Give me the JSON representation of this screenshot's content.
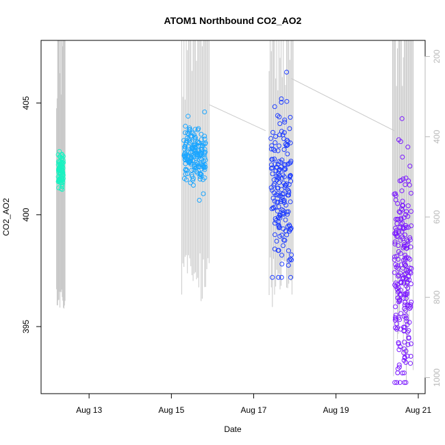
{
  "chart_data": {
    "type": "scatter",
    "title": "ATOM1 Northbound CO2_AO2",
    "xlabel": "Date",
    "ylabel": "CO2_AO2",
    "xlim": [
      "2024-08-11 20:00",
      "2024-08-21 04:00"
    ],
    "ylim": [
      392.0,
      407.8
    ],
    "y2lim": [
      160,
      1040
    ],
    "y2_reversed": true,
    "x_ticks": [
      "Aug 13",
      "Aug 15",
      "Aug 17",
      "Aug 19",
      "Aug 21"
    ],
    "x_tick_dates": [
      "2024-08-13",
      "2024-08-15",
      "2024-08-17",
      "2024-08-19",
      "2024-08-21"
    ],
    "y_ticks": [
      395,
      400,
      405
    ],
    "y2_ticks": [
      200,
      400,
      600,
      800,
      1000
    ],
    "grid": false,
    "legend": "none",
    "colors": {
      "background_series": "#c8c8c8",
      "axis": "#000000",
      "right_axis": "#b8b8b8"
    },
    "series": [
      {
        "time_start": "2024-08-12 06:00",
        "time_end": "2024-08-12 09:00",
        "co2_range": [
          401.0,
          404.0
        ],
        "co2_center": 401.9,
        "co2_spread": 0.45,
        "points": 90,
        "color": "#19f2c1"
      },
      {
        "time_start": "2024-08-15 07:00",
        "time_end": "2024-08-15 20:00",
        "co2_range": [
          400.0,
          404.6
        ],
        "co2_center": 402.6,
        "co2_spread": 0.65,
        "points": 170,
        "color": "#1ca6ff"
      },
      {
        "time_start": "2024-08-17 10:00",
        "time_end": "2024-08-17 22:00",
        "co2_range": [
          397.2,
          407.3
        ],
        "co2_center": 401.2,
        "co2_spread": 1.8,
        "points": 180,
        "color": "#1f3dff"
      },
      {
        "time_start": "2024-08-20 10:00",
        "time_end": "2024-08-20 20:00",
        "co2_range": [
          392.5,
          404.3
        ],
        "co2_center": 397.5,
        "co2_spread": 2.6,
        "points": 220,
        "color": "#7a18ff"
      }
    ],
    "background_series": {
      "axis": "right",
      "connectors": [
        {
          "from": [
            "2024-08-15 22:00",
            320
          ],
          "to": [
            "2024-08-17 07:00",
            385
          ]
        },
        {
          "from": [
            "2024-08-17 22:00",
            255
          ],
          "to": [
            "2024-08-20 10:00",
            385
          ]
        }
      ],
      "bursts": [
        {
          "time_start": "2024-08-12 05:00",
          "time_end": "2024-08-12 10:00",
          "top": 160,
          "bottom": [
            780,
            830
          ]
        },
        {
          "time_start": "2024-08-15 06:00",
          "time_end": "2024-08-15 22:00",
          "top": 160,
          "bottom": [
            690,
            810
          ]
        },
        {
          "time_start": "2024-08-17 09:00",
          "time_end": "2024-08-17 23:00",
          "top": 160,
          "bottom": [
            700,
            830
          ]
        },
        {
          "time_start": "2024-08-20 09:00",
          "time_end": "2024-08-20 21:00",
          "top": 160,
          "bottom": [
            650,
            1040
          ]
        }
      ]
    }
  }
}
